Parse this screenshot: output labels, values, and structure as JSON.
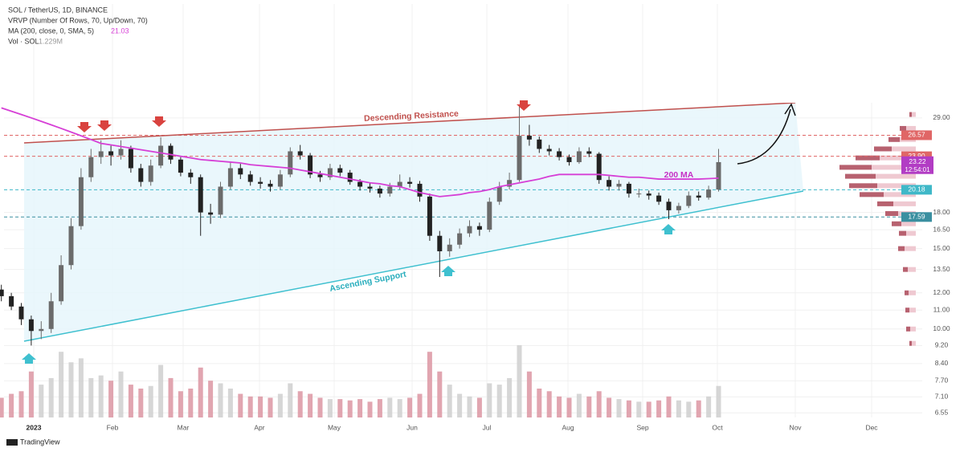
{
  "chart_data": {
    "type": "candlestick",
    "title": "SOL / TetherUS, 1D, BINANCE",
    "indicators": [
      "VRVP (Number Of Rows, 70, Up/Down, 70)"
    ],
    "ma": {
      "label": "MA (200, close, 0, SMA, 5)",
      "value": 21.03,
      "color": "#d63fd6",
      "values": [
        30.5,
        30.0,
        29.5,
        29.0,
        28.5,
        28.0,
        27.5,
        27.0,
        26.5,
        26.0,
        25.5,
        25.3,
        25.1,
        24.9,
        24.7,
        24.5,
        24.3,
        24.1,
        23.9,
        23.7,
        23.5,
        23.4,
        23.3,
        23.2,
        23.1,
        22.9,
        22.8,
        22.7,
        22.6,
        22.5,
        22.3,
        22.1,
        21.9,
        21.7,
        21.5,
        21.3,
        21.1,
        20.9,
        20.8,
        20.6,
        20.5,
        20.2,
        19.9,
        19.7,
        19.5,
        19.6,
        19.7,
        19.9,
        20.0,
        20.2,
        20.5,
        20.7,
        20.9,
        21.1,
        21.3,
        21.6,
        21.8,
        21.8,
        21.8,
        21.8,
        21.8,
        21.7,
        21.6,
        21.5,
        21.5,
        21.4,
        21.3,
        21.3,
        21.3,
        21.3,
        21.3,
        21.35,
        21.4
      ]
    },
    "volume": {
      "label": "Vol · SOL",
      "value": 1229000,
      "value_label": "1.229M",
      "up_color": "#cfcfcf",
      "down_color": "#dc95a2",
      "values": [
        1.5,
        1.8,
        2.0,
        3.5,
        2.5,
        3.0,
        5.0,
        4.2,
        4.5,
        3.0,
        3.2,
        2.8,
        3.5,
        2.5,
        2.2,
        2.4,
        4.0,
        3.0,
        2.0,
        2.2,
        3.8,
        2.8,
        2.6,
        2.2,
        1.8,
        1.6,
        1.6,
        1.5,
        1.8,
        2.6,
        2.0,
        1.8,
        1.5,
        1.4,
        1.4,
        1.3,
        1.4,
        1.2,
        1.4,
        1.5,
        1.4,
        1.5,
        1.8,
        5.0,
        3.5,
        2.5,
        1.8,
        1.6,
        1.5,
        2.6,
        2.5,
        3.0,
        5.5,
        3.5,
        2.2,
        2.0,
        1.6,
        1.5,
        1.8,
        1.6,
        2.0,
        1.5,
        1.4,
        1.3,
        1.2,
        1.2,
        1.3,
        1.6,
        1.3,
        1.2,
        1.3,
        1.6,
        2.4
      ]
    },
    "up_color": "#6b6b6b",
    "down_color": "#222222",
    "candles": [
      [
        12.2,
        12.5,
        11.5,
        11.8
      ],
      [
        11.8,
        12.0,
        11.0,
        11.2
      ],
      [
        11.2,
        11.4,
        10.2,
        10.5
      ],
      [
        10.5,
        10.7,
        9.2,
        9.9
      ],
      [
        9.9,
        10.4,
        9.5,
        10.0
      ],
      [
        10.0,
        12.0,
        9.8,
        11.5
      ],
      [
        11.5,
        14.5,
        11.3,
        13.8
      ],
      [
        13.8,
        17.5,
        13.5,
        16.8
      ],
      [
        16.8,
        22.5,
        16.5,
        21.5
      ],
      [
        21.5,
        24.8,
        21.0,
        23.8
      ],
      [
        23.8,
        25.9,
        23.0,
        24.5
      ],
      [
        24.5,
        25.2,
        22.8,
        24.0
      ],
      [
        24.0,
        25.9,
        23.5,
        24.8
      ],
      [
        24.8,
        25.2,
        22.0,
        22.5
      ],
      [
        22.5,
        23.0,
        20.5,
        21.0
      ],
      [
        21.0,
        23.5,
        20.6,
        22.8
      ],
      [
        22.8,
        26.3,
        22.5,
        25.2
      ],
      [
        25.2,
        25.5,
        23.0,
        23.5
      ],
      [
        23.5,
        23.8,
        21.6,
        22.0
      ],
      [
        22.0,
        22.4,
        20.8,
        21.5
      ],
      [
        21.5,
        21.8,
        16.0,
        18.0
      ],
      [
        18.0,
        18.8,
        17.0,
        17.8
      ],
      [
        17.8,
        21.0,
        17.5,
        20.5
      ],
      [
        20.5,
        23.2,
        20.2,
        22.5
      ],
      [
        22.5,
        23.0,
        21.3,
        21.8
      ],
      [
        21.8,
        22.2,
        20.6,
        21.0
      ],
      [
        21.0,
        21.5,
        20.3,
        20.8
      ],
      [
        20.8,
        21.2,
        20.0,
        20.5
      ],
      [
        20.5,
        22.3,
        20.2,
        21.8
      ],
      [
        21.8,
        25.0,
        21.5,
        24.5
      ],
      [
        24.5,
        25.3,
        23.5,
        24.0
      ],
      [
        24.0,
        24.3,
        21.4,
        21.8
      ],
      [
        21.8,
        22.2,
        21.0,
        21.5
      ],
      [
        21.5,
        23.0,
        21.2,
        22.5
      ],
      [
        22.5,
        22.9,
        21.6,
        22.0
      ],
      [
        22.0,
        22.3,
        20.7,
        21.0
      ],
      [
        21.0,
        21.3,
        20.1,
        20.5
      ],
      [
        20.5,
        20.9,
        19.9,
        20.3
      ],
      [
        20.3,
        20.6,
        19.4,
        19.8
      ],
      [
        19.8,
        20.9,
        19.5,
        20.5
      ],
      [
        20.5,
        21.8,
        20.2,
        21.0
      ],
      [
        21.0,
        21.5,
        20.4,
        20.8
      ],
      [
        20.8,
        21.1,
        19.0,
        19.5
      ],
      [
        19.5,
        19.8,
        15.6,
        16.0
      ],
      [
        16.0,
        16.4,
        13.0,
        14.8
      ],
      [
        14.8,
        15.8,
        14.4,
        15.3
      ],
      [
        15.3,
        16.6,
        15.0,
        16.2
      ],
      [
        16.2,
        17.3,
        15.9,
        16.8
      ],
      [
        16.8,
        17.1,
        16.0,
        16.5
      ],
      [
        16.5,
        19.4,
        16.3,
        19.0
      ],
      [
        19.0,
        21.0,
        18.7,
        20.5
      ],
      [
        20.5,
        22.0,
        20.2,
        21.2
      ],
      [
        21.2,
        31.0,
        21.0,
        26.5
      ],
      [
        26.5,
        28.0,
        25.2,
        26.0
      ],
      [
        26.0,
        26.4,
        24.3,
        24.8
      ],
      [
        24.8,
        25.3,
        24.0,
        24.5
      ],
      [
        24.5,
        24.9,
        23.4,
        23.8
      ],
      [
        23.8,
        24.1,
        22.8,
        23.2
      ],
      [
        23.2,
        25.0,
        23.0,
        24.5
      ],
      [
        24.5,
        25.0,
        23.8,
        24.2
      ],
      [
        24.2,
        24.4,
        20.8,
        21.2
      ],
      [
        21.2,
        21.6,
        20.1,
        20.5
      ],
      [
        20.5,
        21.2,
        20.1,
        20.8
      ],
      [
        20.8,
        21.0,
        19.4,
        19.8
      ],
      [
        19.8,
        20.3,
        19.4,
        19.8
      ],
      [
        19.8,
        20.1,
        19.2,
        19.6
      ],
      [
        19.6,
        19.9,
        18.7,
        19.0
      ],
      [
        19.0,
        19.3,
        17.4,
        18.2
      ],
      [
        18.2,
        18.9,
        17.9,
        18.6
      ],
      [
        18.6,
        20.0,
        18.4,
        19.6
      ],
      [
        19.6,
        20.0,
        19.1,
        19.4
      ],
      [
        19.4,
        20.6,
        19.2,
        20.2
      ],
      [
        20.2,
        24.8,
        20.0,
        23.2
      ]
    ],
    "x_labels": [
      "2023",
      "Feb",
      "Mar",
      "Apr",
      "May",
      "Jun",
      "Jul",
      "Aug",
      "Sep",
      "Oct",
      "Nov",
      "Dec"
    ],
    "log_scale": true,
    "ylim": [
      6.4,
      51.5
    ],
    "yticks": [
      {
        "value": 29,
        "label": "29.00"
      },
      {
        "value": 18,
        "label": "18.00"
      },
      {
        "value": 16.5,
        "label": "16.50"
      },
      {
        "value": 15,
        "label": "15.00"
      },
      {
        "value": 13.5,
        "label": "13.50"
      },
      {
        "value": 12,
        "label": "12.00"
      },
      {
        "value": 11,
        "label": "11.00"
      },
      {
        "value": 10,
        "label": "10.00"
      },
      {
        "value": 9.2,
        "label": "9.20"
      },
      {
        "value": 8.4,
        "label": "8.40"
      },
      {
        "value": 7.7,
        "label": "7.70"
      },
      {
        "value": 7.1,
        "label": "7.10"
      },
      {
        "value": 6.55,
        "label": "6.55"
      }
    ],
    "grid": true,
    "price_lines": [
      {
        "value": 26.57,
        "color": "#e06666"
      },
      {
        "value": 23.9,
        "label": "23.90",
        "color": "#e06666"
      },
      {
        "value": 20.18,
        "color": "#3fb8c8"
      },
      {
        "value": 17.59,
        "color": "#3a8fa0"
      }
    ],
    "last_price": 23.22,
    "countdown": "12:54:01",
    "last_color": "#b23cc4",
    "volume_profile": {
      "prices": [
        29.5,
        27.5,
        26,
        24.8,
        23.7,
        22.6,
        21.6,
        20.6,
        19.7,
        18.8,
        17.9,
        17,
        16.2,
        15,
        13.5,
        12,
        11,
        10,
        9.3
      ],
      "up": [
        5,
        12,
        20,
        30,
        45,
        55,
        50,
        48,
        40,
        28,
        22,
        18,
        12,
        14,
        10,
        9,
        8,
        7,
        5
      ],
      "down": [
        3,
        8,
        14,
        22,
        30,
        40,
        38,
        35,
        30,
        20,
        16,
        12,
        9,
        8,
        6,
        5,
        5,
        5,
        3
      ],
      "up_color": "#efc9d1",
      "down_color": "#b7616f"
    },
    "annotations": [
      {
        "text": "Descending Resistance",
        "color": "#c0504d"
      },
      {
        "text": "Ascending Support",
        "color": "#2aaebd"
      },
      {
        "text": "200 MA",
        "color": "#c531c5"
      }
    ],
    "footer": "TradingView"
  }
}
